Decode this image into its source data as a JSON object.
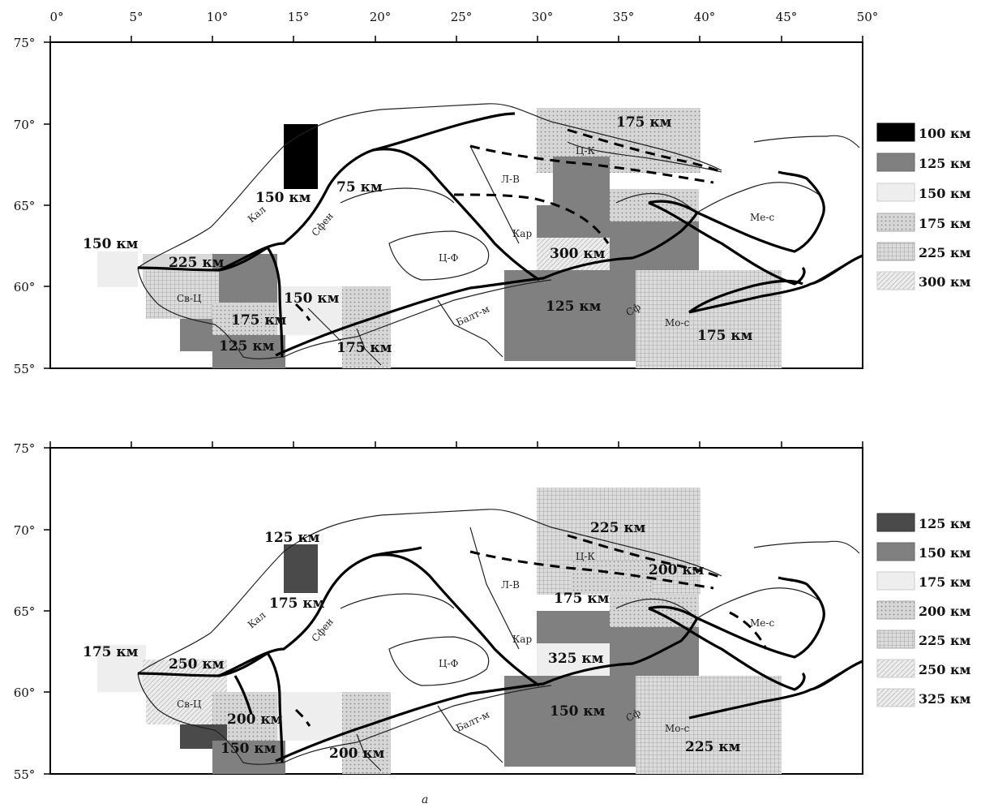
{
  "lon_ticks": [
    "0°",
    "5°",
    "10°",
    "15°",
    "20°",
    "25°",
    "30°",
    "35°",
    "40°",
    "45°",
    "50°"
  ],
  "lat_ticks": [
    "75°",
    "70°",
    "65°",
    "60°",
    "55°"
  ],
  "colors": {
    "100 км": "#000000",
    "125 км": "#808080",
    "150 км": "#eeeeee",
    "175 км": "#cfcfcf",
    "200 км": "#c8c8c8",
    "225 км": "#d9d9d9",
    "250 км": "#e4e4e4",
    "300 км": "#e8e8e8",
    "325 км": "#e8e8e8",
    "125 км dark": "#4a4a4a",
    "150 км mid": "#808080"
  },
  "region_labels": [
    "Св-Ц",
    "Ц-Ф",
    "Кар",
    "Л-В",
    "Ц-К",
    "Ме-с",
    "Мо-с",
    "Сфен",
    "Кал",
    "Балт-м",
    "Сф"
  ],
  "maps": [
    {
      "legend": [
        {
          "label": "100 км",
          "fill": "#000000",
          "hatch": false
        },
        {
          "label": "125 км",
          "fill": "#808080",
          "hatch": false
        },
        {
          "label": "150 км",
          "fill": "#eeeeee",
          "hatch": false
        },
        {
          "label": "175 км",
          "fill": "#cfcfcf",
          "hatch": "dots"
        },
        {
          "label": "225 км",
          "fill": "#d9d9d9",
          "hatch": "grid"
        },
        {
          "label": "300 км",
          "fill": "#e8e8e8",
          "hatch": "diag"
        }
      ],
      "depth_labels": [
        "175 км",
        "75 км",
        "150 км",
        "150 км",
        "225 км",
        "300 км",
        "150 км",
        "125 км",
        "175 км",
        "175 км",
        "125 км",
        "175 км"
      ]
    },
    {
      "legend": [
        {
          "label": "125 км",
          "fill": "#4a4a4a",
          "hatch": false
        },
        {
          "label": "150 км",
          "fill": "#808080",
          "hatch": false
        },
        {
          "label": "175 км",
          "fill": "#eeeeee",
          "hatch": false
        },
        {
          "label": "200 км",
          "fill": "#c8c8c8",
          "hatch": "dots"
        },
        {
          "label": "225 км",
          "fill": "#d9d9d9",
          "hatch": "grid"
        },
        {
          "label": "250 км",
          "fill": "#e4e4e4",
          "hatch": "diag"
        },
        {
          "label": "325 км",
          "fill": "#e8e8e8",
          "hatch": "diag"
        }
      ],
      "depth_labels": [
        "225 км",
        "125 км",
        "200 км",
        "175 км",
        "175 км",
        "250 км",
        "325 км",
        "175 км",
        "200 км",
        "150 км",
        "150 км",
        "225 км",
        "200 км"
      ]
    }
  ],
  "caption": "а"
}
